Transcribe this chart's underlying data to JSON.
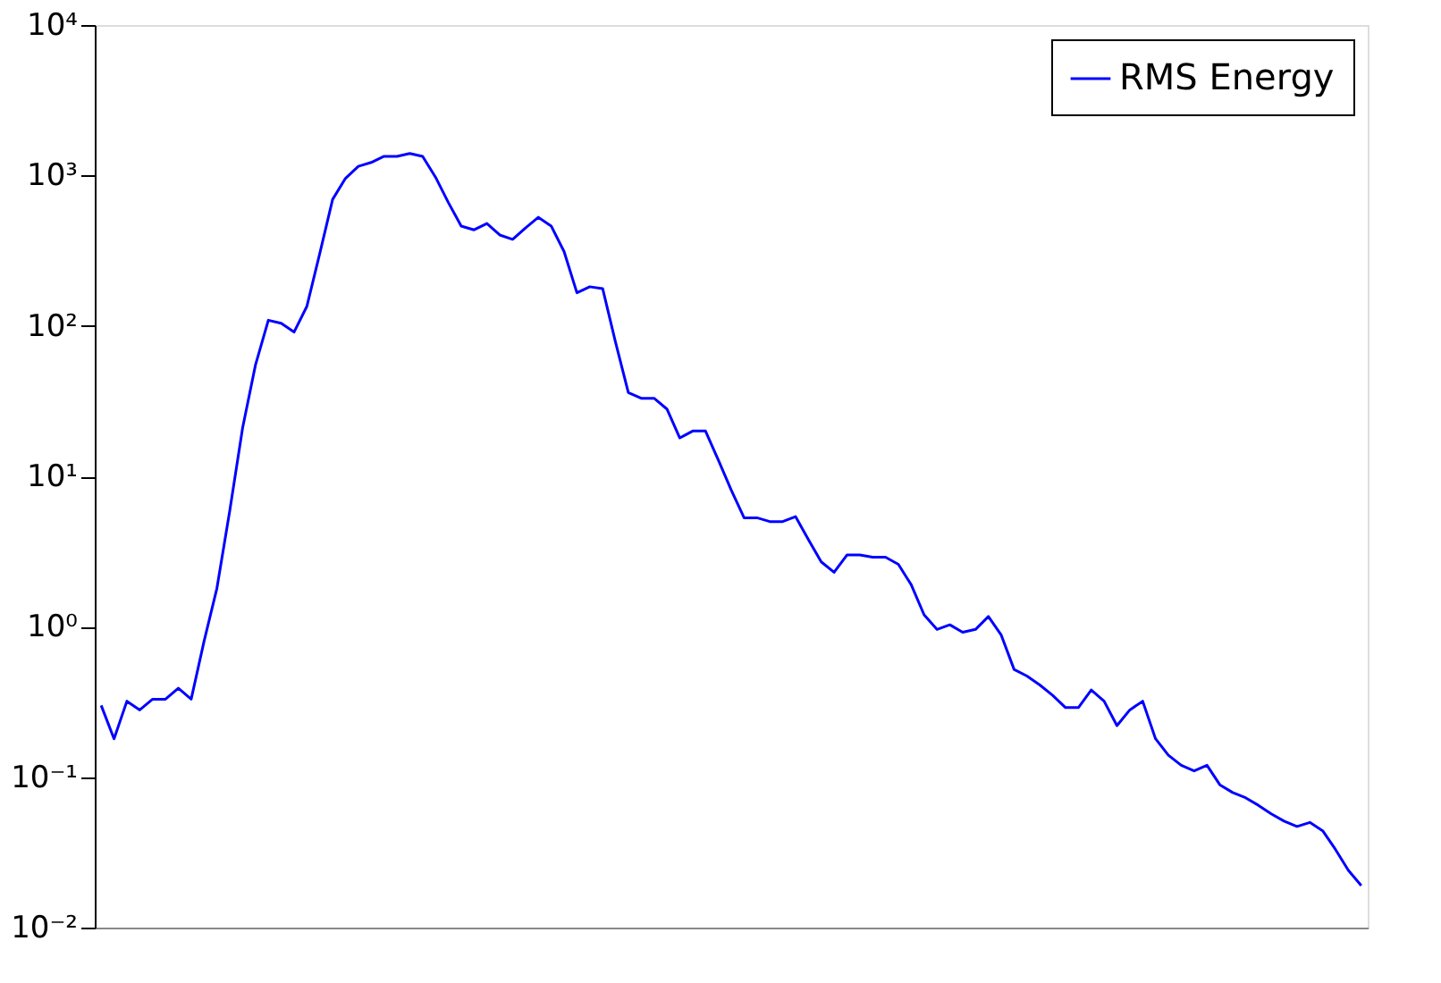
{
  "chart_data": {
    "type": "line",
    "categories": [
      null,
      null,
      null,
      null,
      null,
      null,
      null,
      null,
      null,
      null,
      null,
      null,
      null,
      null,
      null,
      null,
      null,
      null,
      null,
      null,
      null,
      null,
      null,
      null,
      null,
      null,
      null,
      null,
      null,
      null,
      null,
      null,
      null,
      null,
      null,
      null,
      null,
      null,
      null,
      null,
      null,
      null,
      null,
      null,
      null,
      null,
      null,
      null,
      null,
      null,
      null,
      null,
      null,
      null,
      null,
      null,
      null,
      null,
      null,
      null,
      null,
      null,
      null,
      null,
      null,
      null,
      null,
      null,
      null,
      null,
      null,
      null,
      null,
      null,
      null,
      null,
      null,
      null,
      null,
      null,
      null,
      null,
      null,
      null,
      null,
      null,
      null,
      null,
      null,
      null,
      null,
      null,
      null,
      null,
      null,
      null,
      null,
      null,
      null
    ],
    "series": [
      {
        "name": "RMS Energy",
        "color": "#0000ff",
        "values": [
          0.3,
          0.18,
          0.32,
          0.28,
          0.33,
          0.33,
          0.39,
          0.33,
          0.8,
          1.8,
          5.9,
          21,
          55,
          109,
          104,
          91,
          135,
          303,
          693,
          957,
          1150,
          1220,
          1340,
          1340,
          1400,
          1340,
          975,
          661,
          461,
          435,
          479,
          402,
          376,
          448,
          527,
          461,
          312,
          166,
          182,
          177,
          78,
          36,
          33,
          33,
          28,
          18,
          20,
          20,
          12.8,
          8.1,
          5.3,
          5.3,
          5.0,
          5.0,
          5.4,
          3.8,
          2.7,
          2.3,
          3.0,
          3.0,
          2.9,
          2.9,
          2.6,
          1.9,
          1.2,
          0.96,
          1.03,
          0.92,
          0.96,
          1.17,
          0.88,
          0.52,
          0.47,
          0.41,
          0.35,
          0.29,
          0.29,
          0.38,
          0.32,
          0.22,
          0.28,
          0.32,
          0.18,
          0.14,
          0.12,
          0.11,
          0.12,
          0.089,
          0.079,
          0.073,
          0.065,
          0.057,
          0.051,
          0.047,
          0.05,
          0.044,
          0.033,
          0.024,
          0.019
        ]
      }
    ],
    "log": "y",
    "ylim": [
      0.01,
      10000
    ],
    "yticks": [
      {
        "value": 0.01,
        "label": "10⁻²"
      },
      {
        "value": 0.1,
        "label": "10⁻¹"
      },
      {
        "value": 1,
        "label": "10⁰"
      },
      {
        "value": 10,
        "label": "10¹"
      },
      {
        "value": 100,
        "label": "10²"
      },
      {
        "value": 1000,
        "label": "10³"
      },
      {
        "value": 10000,
        "label": "10⁴"
      }
    ],
    "tick_labels": "y",
    "legend": "top right",
    "line_style": "solid",
    "grid": false
  }
}
